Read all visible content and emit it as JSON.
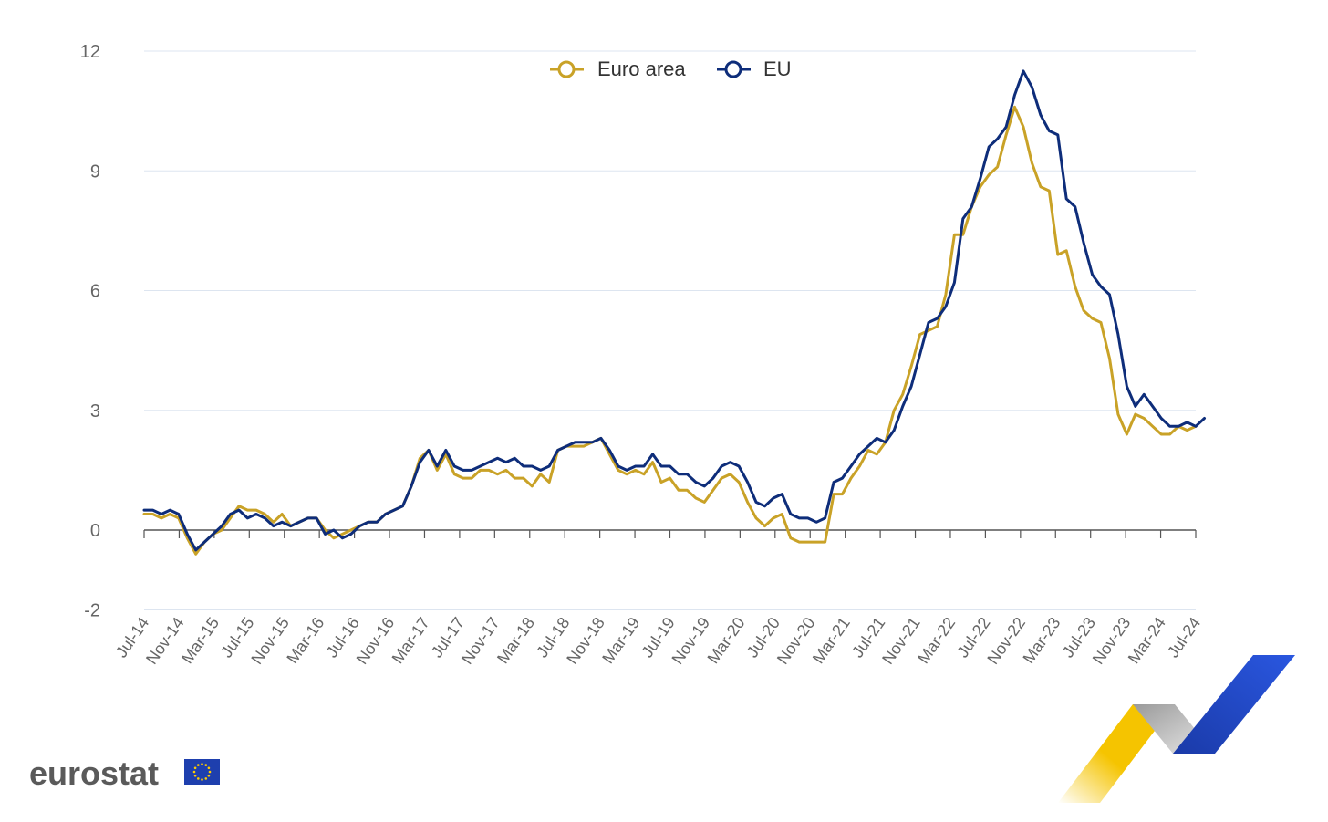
{
  "chart_data": {
    "type": "line",
    "title": "",
    "xlabel": "",
    "ylabel": "",
    "ylim": [
      -2,
      12
    ],
    "y_ticks": [
      12,
      9,
      6,
      3,
      0,
      -2
    ],
    "grid": true,
    "legend_position": "top-center",
    "x_tick_labels": [
      "Jul-14",
      "Nov-14",
      "Mar-15",
      "Jul-15",
      "Nov-15",
      "Mar-16",
      "Jul-16",
      "Nov-16",
      "Mar-17",
      "Jul-17",
      "Nov-17",
      "Mar-18",
      "Jul-18",
      "Nov-18",
      "Mar-19",
      "Jul-19",
      "Nov-19",
      "Mar-20",
      "Jul-20",
      "Nov-20",
      "Mar-21",
      "Jul-21",
      "Nov-21",
      "Mar-22",
      "Jul-22",
      "Nov-22",
      "Mar-23",
      "Jul-23",
      "Nov-23",
      "Mar-24",
      "Jul-24"
    ],
    "x_start": "2014-07",
    "x_end": "2024-07",
    "series": [
      {
        "name": "Euro area",
        "color": "#c9a227",
        "values": [
          0.4,
          0.4,
          0.3,
          0.4,
          0.3,
          -0.2,
          -0.6,
          -0.3,
          -0.1,
          0.0,
          0.3,
          0.6,
          0.5,
          0.5,
          0.4,
          0.2,
          0.4,
          0.1,
          0.2,
          0.3,
          0.3,
          0.0,
          -0.2,
          -0.1,
          0.0,
          0.1,
          0.2,
          0.2,
          0.4,
          0.5,
          0.6,
          1.1,
          1.8,
          2.0,
          1.5,
          1.9,
          1.4,
          1.3,
          1.3,
          1.5,
          1.5,
          1.4,
          1.5,
          1.3,
          1.3,
          1.1,
          1.4,
          1.2,
          2.0,
          2.1,
          2.1,
          2.1,
          2.2,
          2.3,
          1.9,
          1.5,
          1.4,
          1.5,
          1.4,
          1.7,
          1.2,
          1.3,
          1.0,
          1.0,
          0.8,
          0.7,
          1.0,
          1.3,
          1.4,
          1.2,
          0.7,
          0.3,
          0.1,
          0.3,
          0.4,
          -0.2,
          -0.3,
          -0.3,
          -0.3,
          -0.3,
          0.9,
          0.9,
          1.3,
          1.6,
          2.0,
          1.9,
          2.2,
          3.0,
          3.4,
          4.1,
          4.9,
          5.0,
          5.1,
          5.9,
          7.4,
          7.4,
          8.1,
          8.6,
          8.9,
          9.1,
          9.9,
          10.6,
          10.1,
          9.2,
          8.6,
          8.5,
          6.9,
          7.0,
          6.1,
          5.5,
          5.3,
          5.2,
          4.3,
          2.9,
          2.4,
          2.9,
          2.8,
          2.6,
          2.4,
          2.4,
          2.6,
          2.5,
          2.6
        ]
      },
      {
        "name": "EU",
        "color": "#0e2d7a",
        "values": [
          0.5,
          0.5,
          0.4,
          0.5,
          0.4,
          -0.1,
          -0.5,
          -0.3,
          -0.1,
          0.1,
          0.4,
          0.5,
          0.3,
          0.4,
          0.3,
          0.1,
          0.2,
          0.1,
          0.2,
          0.3,
          0.3,
          -0.1,
          0.0,
          -0.2,
          -0.1,
          0.1,
          0.2,
          0.2,
          0.4,
          0.5,
          0.6,
          1.1,
          1.7,
          2.0,
          1.6,
          2.0,
          1.6,
          1.5,
          1.5,
          1.6,
          1.7,
          1.8,
          1.7,
          1.8,
          1.6,
          1.6,
          1.5,
          1.6,
          2.0,
          2.1,
          2.2,
          2.2,
          2.2,
          2.3,
          2.0,
          1.6,
          1.5,
          1.6,
          1.6,
          1.9,
          1.6,
          1.6,
          1.4,
          1.4,
          1.2,
          1.1,
          1.3,
          1.6,
          1.7,
          1.6,
          1.2,
          0.7,
          0.6,
          0.8,
          0.9,
          0.4,
          0.3,
          0.3,
          0.2,
          0.3,
          1.2,
          1.3,
          1.6,
          1.9,
          2.1,
          2.3,
          2.2,
          2.5,
          3.1,
          3.6,
          4.4,
          5.2,
          5.3,
          5.6,
          6.2,
          7.8,
          8.1,
          8.8,
          9.6,
          9.8,
          10.1,
          10.9,
          11.5,
          11.1,
          10.4,
          10.0,
          9.9,
          8.3,
          8.1,
          7.2,
          6.4,
          6.1,
          5.9,
          4.9,
          3.6,
          3.1,
          3.4,
          3.1,
          2.8,
          2.6,
          2.6,
          2.7,
          2.6,
          2.8
        ]
      }
    ]
  },
  "legend": [
    {
      "label": "Euro area",
      "color": "#c9a227"
    },
    {
      "label": "EU",
      "color": "#0e2d7a"
    }
  ],
  "branding": {
    "logo_text": "eurostat",
    "flag_color": "#1e3fae",
    "star_color": "#ffcc00",
    "swoosh_yellow": "#f5c400",
    "swoosh_grey": "#b8b8b8",
    "swoosh_blue": "#1f3eb5"
  }
}
